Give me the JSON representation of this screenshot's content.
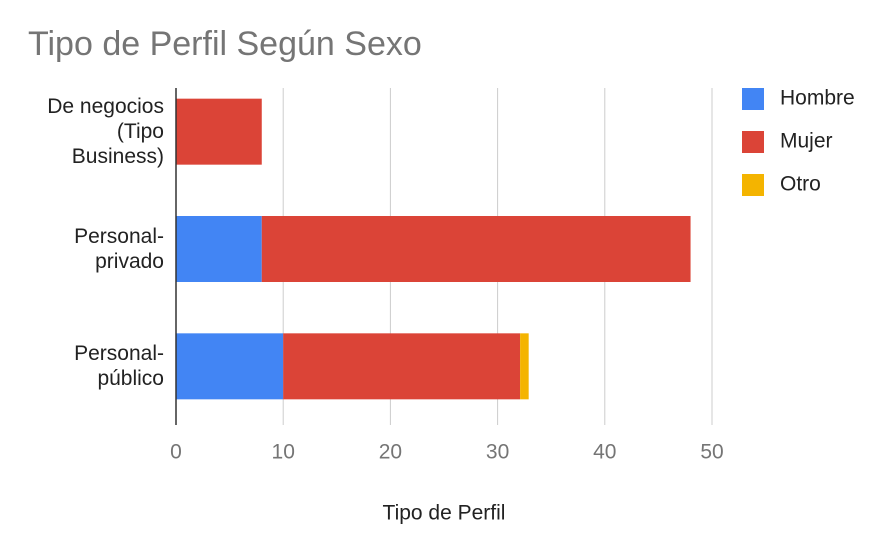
{
  "chart_data": {
    "type": "stacked-bar-horizontal",
    "title": "Tipo de Perfil Según Sexo",
    "x_axis_label": "Tipo de Perfil",
    "categories": [
      "De negocios (Tipo Business)",
      "Personal-privado",
      "Personal-público"
    ],
    "series": [
      {
        "name": "Hombre",
        "color": "#4285f4",
        "values": [
          0,
          8,
          10
        ]
      },
      {
        "name": "Mujer",
        "color": "#db4437",
        "values": [
          8,
          40,
          22.1
        ]
      },
      {
        "name": "Otro",
        "color": "#f4b400",
        "values": [
          0,
          0,
          0.8
        ]
      }
    ],
    "xlim": [
      0,
      50
    ],
    "xticks": [
      0,
      10,
      20,
      30,
      40,
      50
    ],
    "grid": true,
    "legend": "right"
  }
}
